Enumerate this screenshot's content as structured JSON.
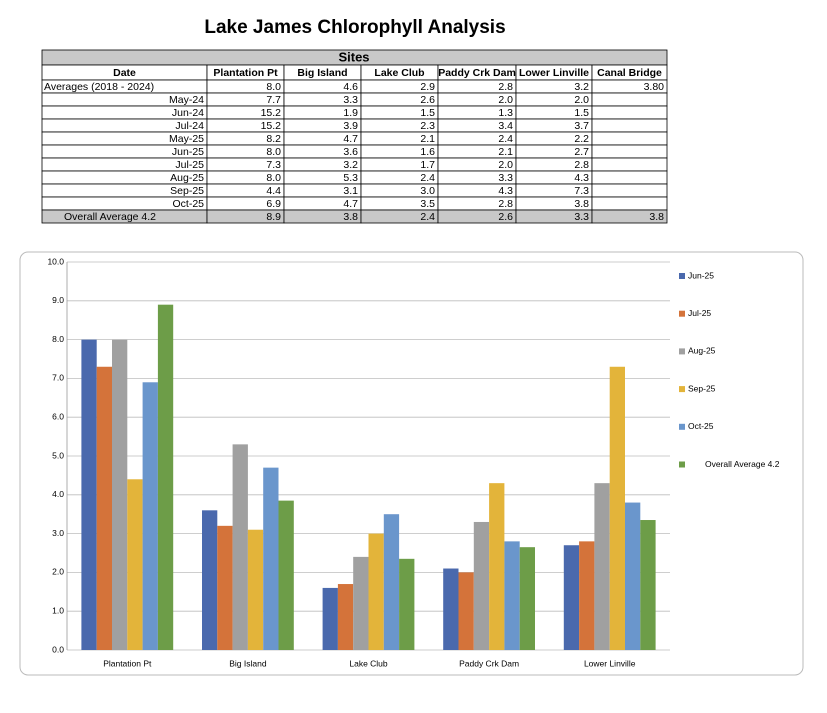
{
  "title": "Lake James Chlorophyll Analysis",
  "table": {
    "group_header": "Sites",
    "columns": [
      "Date",
      "Plantation Pt",
      "Big Island",
      "Lake Club",
      "Paddy Crk Dam",
      "Lower Linville",
      "Canal Bridge"
    ],
    "rows": [
      [
        "Averages (2018 - 2024)",
        "8.0",
        "4.6",
        "2.9",
        "2.8",
        "3.2",
        "3.80"
      ],
      [
        "May-24",
        "7.7",
        "3.3",
        "2.6",
        "2.0",
        "2.0"
      ],
      [
        "Jun-24",
        "15.2",
        "1.9",
        "1.5",
        "1.3",
        "1.5"
      ],
      [
        "Jul-24",
        "15.2",
        "3.9",
        "2.3",
        "3.4",
        "3.7"
      ],
      [
        "May-25",
        "8.2",
        "4.7",
        "2.1",
        "2.4",
        "2.2"
      ],
      [
        "Jun-25",
        "8.0",
        "3.6",
        "1.6",
        "2.1",
        "2.7"
      ],
      [
        "Jul-25",
        "7.3",
        "3.2",
        "1.7",
        "2.0",
        "2.8"
      ],
      [
        "Aug-25",
        "8.0",
        "5.3",
        "2.4",
        "3.3",
        "4.3"
      ],
      [
        "Sep-25",
        "4.4",
        "3.1",
        "3.0",
        "4.3",
        "7.3"
      ],
      [
        "Oct-25",
        "6.9",
        "4.7",
        "3.5",
        "2.8",
        "3.8"
      ]
    ],
    "footer": [
      "Overall Average 4.2",
      "8.9",
      "3.8",
      "2.4",
      "2.6",
      "3.3",
      "3.8"
    ]
  },
  "chart_data": {
    "type": "bar",
    "categories": [
      "Plantation Pt",
      "Big Island",
      "Lake Club",
      "Paddy Crk Dam",
      "Lower Linville"
    ],
    "series": [
      {
        "name": "Jun-25",
        "color": "#4a69ad",
        "values": [
          8.0,
          3.6,
          1.6,
          2.1,
          2.7
        ]
      },
      {
        "name": "Jul-25",
        "color": "#d4733a",
        "values": [
          7.3,
          3.2,
          1.7,
          2.0,
          2.8
        ]
      },
      {
        "name": "Aug-25",
        "color": "#a0a0a0",
        "values": [
          8.0,
          5.3,
          2.4,
          3.3,
          4.3
        ]
      },
      {
        "name": "Sep-25",
        "color": "#e3b43a",
        "values": [
          4.4,
          3.1,
          3.0,
          4.3,
          7.3
        ]
      },
      {
        "name": "Oct-25",
        "color": "#6a96cc",
        "values": [
          6.9,
          4.7,
          3.5,
          2.8,
          3.8
        ]
      },
      {
        "name": "Overall Average 4.2",
        "color": "#6d9d48",
        "values": [
          8.9,
          3.85,
          2.35,
          2.65,
          3.35
        ]
      }
    ],
    "ylim": [
      0,
      10
    ],
    "yticks": [
      {
        "value": 0,
        "label": "0.0"
      },
      {
        "value": 1,
        "label": "1.0"
      },
      {
        "value": 2,
        "label": "2.0"
      },
      {
        "value": 3,
        "label": "3.0"
      },
      {
        "value": 4,
        "label": "4.0"
      },
      {
        "value": 5,
        "label": "5.0"
      },
      {
        "value": 6,
        "label": "6.0"
      },
      {
        "value": 7,
        "label": "7.0"
      },
      {
        "value": 8,
        "label": "8.0"
      },
      {
        "value": 9,
        "label": "9.0"
      },
      {
        "value": 10,
        "label": "10.0"
      }
    ],
    "grid": true,
    "legend": "right"
  }
}
